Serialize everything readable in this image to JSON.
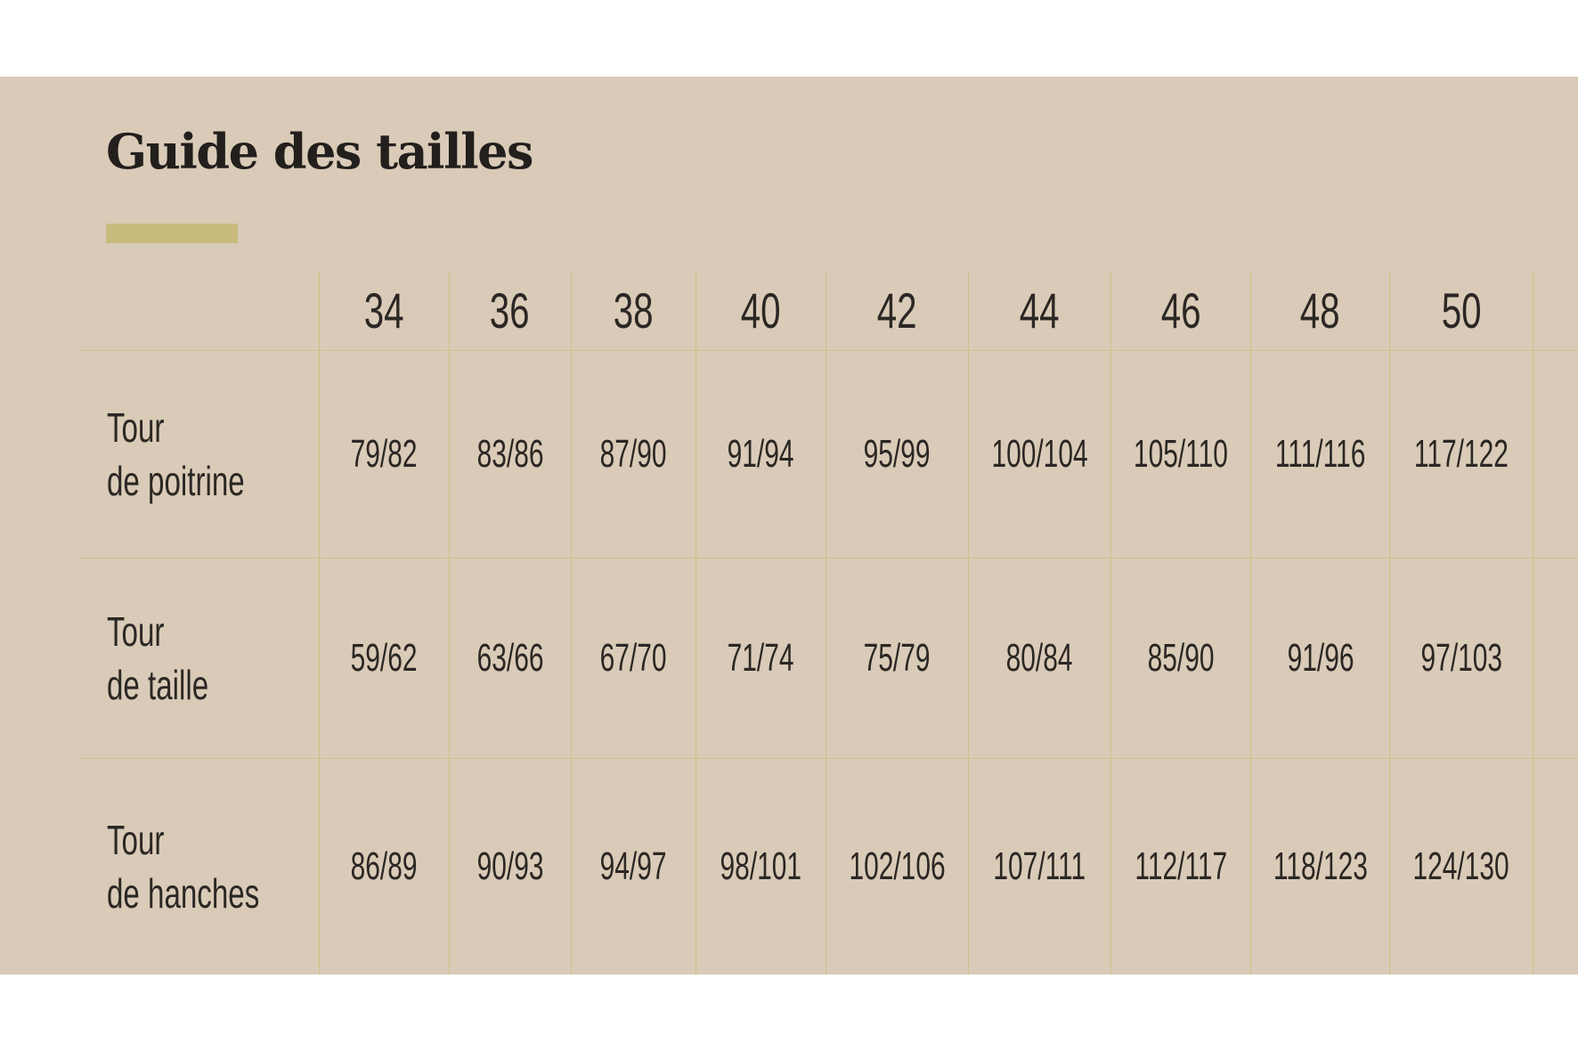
{
  "title": "Guide des tailles",
  "colors": {
    "background": "#d9cbb7",
    "accent": "#c9bb7d",
    "grid": "#cfc184",
    "text": "#2b2724"
  },
  "table": {
    "sizes": [
      "34",
      "36",
      "38",
      "40",
      "42",
      "44",
      "46",
      "48",
      "50"
    ],
    "rows": [
      {
        "label_line1": "Tour",
        "label_line2": "de poitrine",
        "values": [
          "79/82",
          "83/86",
          "87/90",
          "91/94",
          "95/99",
          "100/104",
          "105/110",
          "111/116",
          "117/122"
        ]
      },
      {
        "label_line1": "Tour",
        "label_line2": "de taille",
        "values": [
          "59/62",
          "63/66",
          "67/70",
          "71/74",
          "75/79",
          "80/84",
          "85/90",
          "91/96",
          "97/103"
        ]
      },
      {
        "label_line1": "Tour",
        "label_line2": "de hanches",
        "values": [
          "86/89",
          "90/93",
          "94/97",
          "98/101",
          "102/106",
          "107/111",
          "112/117",
          "118/123",
          "124/130"
        ]
      }
    ]
  }
}
